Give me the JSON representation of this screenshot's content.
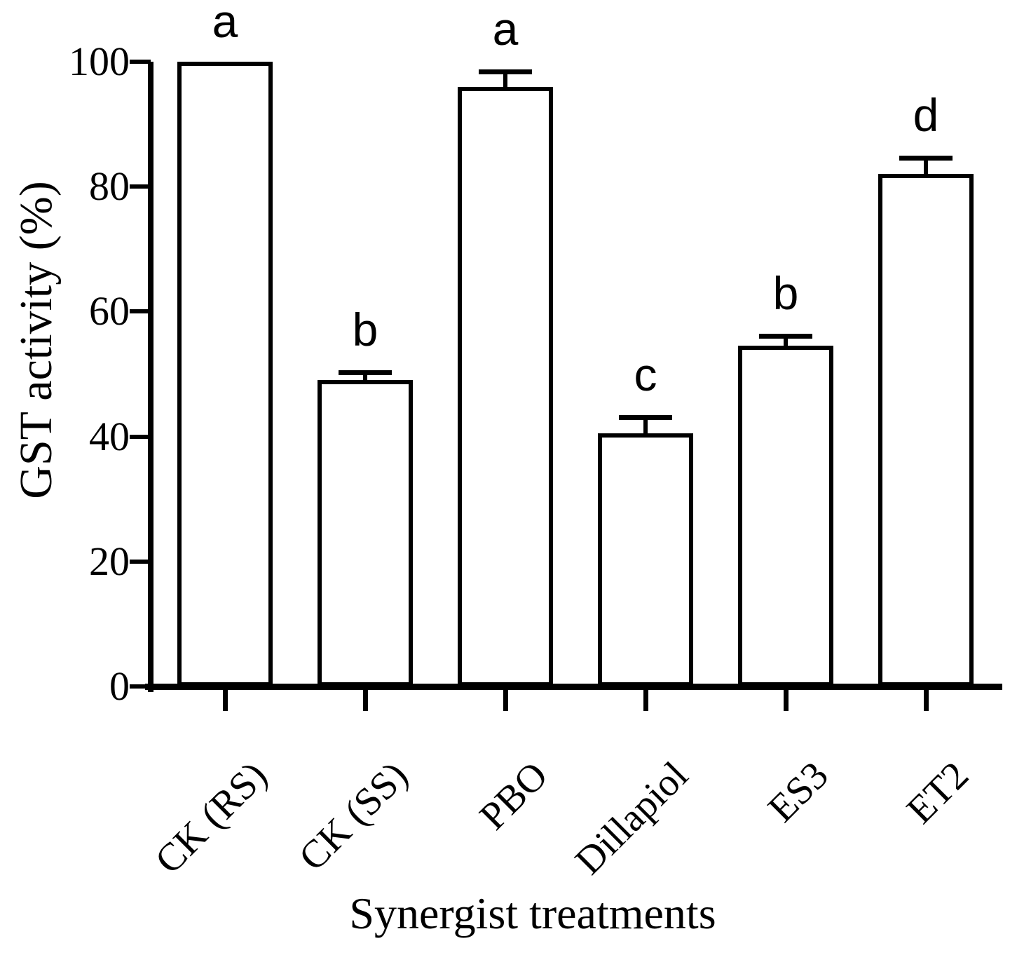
{
  "figure": {
    "background_color": "#ffffff",
    "ink_color": "#000000"
  },
  "chart_data": {
    "type": "bar",
    "title": "",
    "xlabel": "Synergist treatments",
    "ylabel": "GST activity (%)",
    "categories": [
      "CK (RS)",
      "CK (SS)",
      "PBO",
      "Dillapiol",
      "ES3",
      "ET2"
    ],
    "values": [
      100,
      49,
      96,
      40.5,
      54.5,
      82
    ],
    "errors_upper": [
      0,
      0.8,
      2,
      2.2,
      1.2,
      2.2
    ],
    "significance_letters": [
      "a",
      "b",
      "a",
      "c",
      "b",
      "d"
    ],
    "ylim": [
      0,
      100
    ],
    "yticks": [
      0,
      20,
      40,
      60,
      80,
      100
    ],
    "grid": false,
    "legend": false,
    "bar_fill": "#ffffff",
    "bar_stroke": "#000000",
    "x_tick_label_rotation_deg": -45
  }
}
